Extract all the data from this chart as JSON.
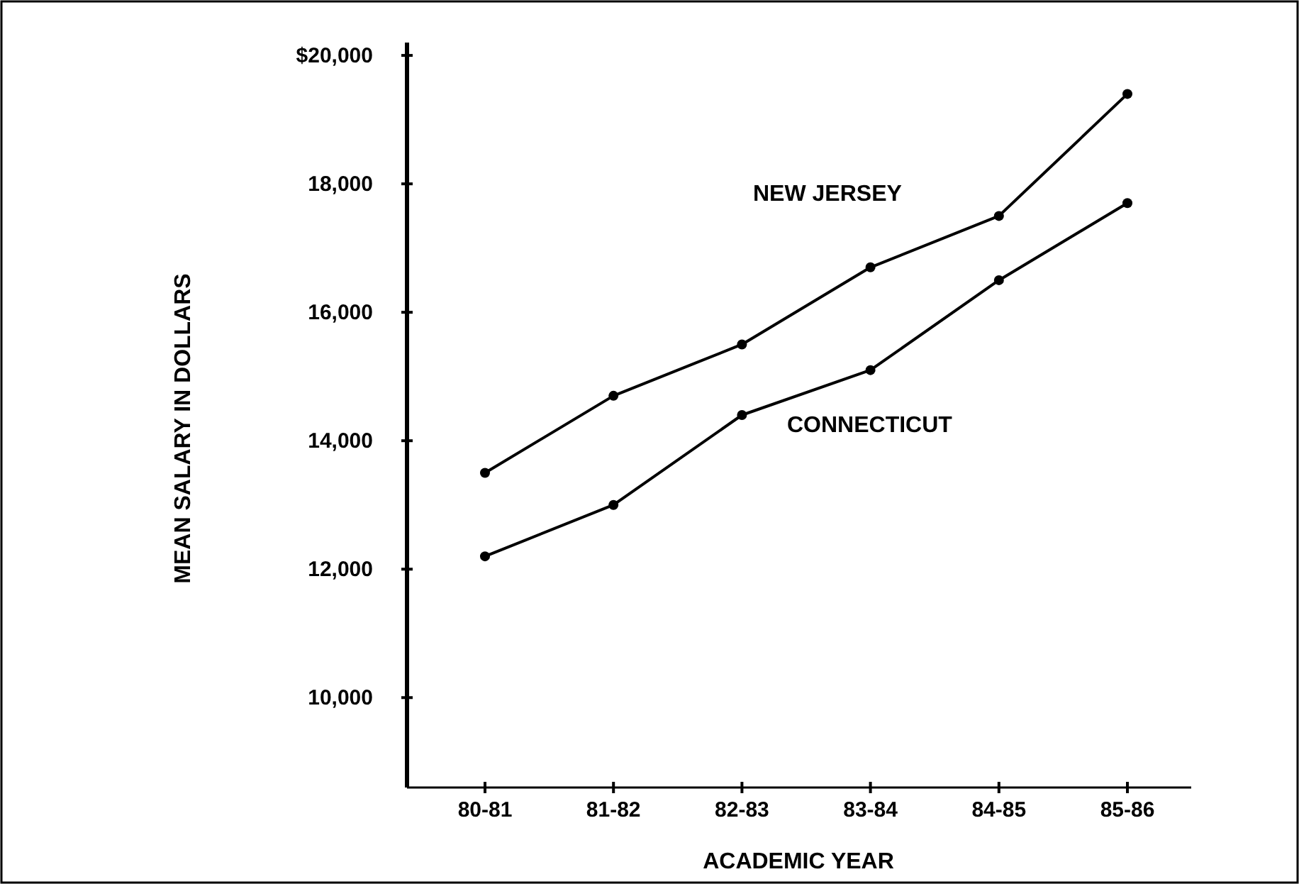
{
  "chart_data": {
    "type": "line",
    "xlabel": "ACADEMIC YEAR",
    "ylabel": "MEAN SALARY IN DOLLARS",
    "categories": [
      "80-81",
      "81-82",
      "82-83",
      "83-84",
      "84-85",
      "85-86"
    ],
    "series": [
      {
        "name": "NEW JERSEY",
        "color": "#000000",
        "values": [
          13500,
          14700,
          15500,
          16700,
          17500,
          19400
        ]
      },
      {
        "name": "CONNECTICUT",
        "color": "#000000",
        "values": [
          12200,
          13000,
          14400,
          15100,
          16500,
          17700
        ]
      }
    ],
    "ylim": [
      8600,
      20200
    ],
    "yticks": [
      {
        "value": 10000,
        "label": "10,000"
      },
      {
        "value": 12000,
        "label": "12,000"
      },
      {
        "value": 14000,
        "label": "14,000"
      },
      {
        "value": 16000,
        "label": "16,000"
      },
      {
        "value": 18000,
        "label": "18,000"
      },
      {
        "value": 20000,
        "label": "$20,000"
      }
    ],
    "marker": "circle",
    "line_style": "solid",
    "grid": false,
    "legend": false
  }
}
